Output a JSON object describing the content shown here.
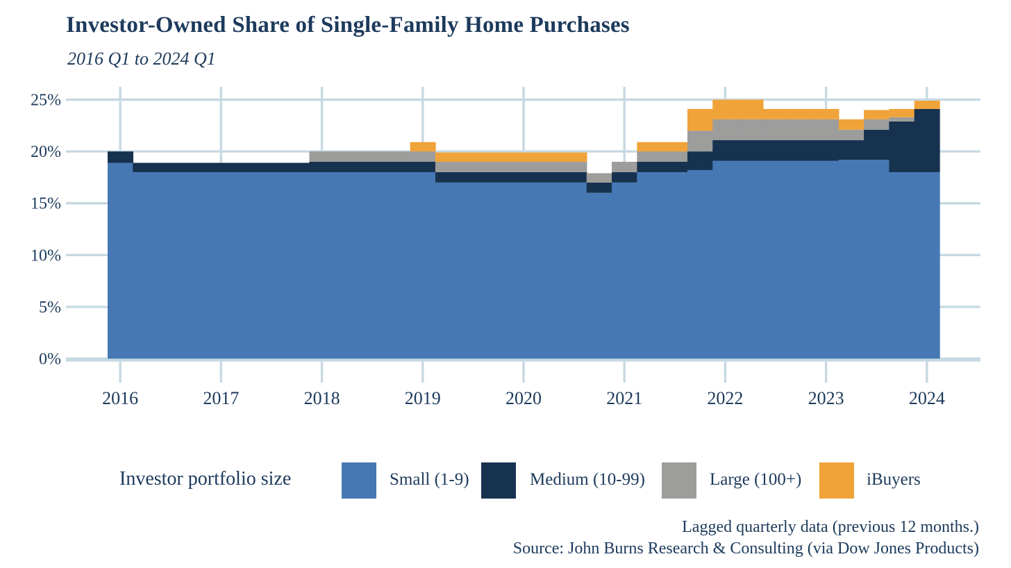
{
  "header": {
    "title": "Investor-Owned Share of Single-Family Home Purchases",
    "subtitle": "2016 Q1 to 2024 Q1"
  },
  "legend": {
    "title": "Investor portfolio size"
  },
  "footer": {
    "line1": "Lagged quarterly data (previous 12 months.)",
    "line2": "Source: John Burns Research & Consulting (via Dow Jones Products)"
  },
  "colors": {
    "text_navy": "#1d3a5c",
    "gridline": "#c7d9e2",
    "background": "#ffffff",
    "small_blue": "#4678b4",
    "medium_navy": "#16324f",
    "large_gray": "#9d9d9c",
    "ibuyers_orange": "#f0a339"
  },
  "chart_data": {
    "type": "area",
    "stacked": true,
    "step": true,
    "title": "Investor-Owned Share of Single-Family Home Purchases",
    "subtitle": "2016 Q1 to 2024 Q1",
    "legend_title": "Investor portfolio size",
    "legend_position": "bottom",
    "grid": true,
    "ylim": [
      0,
      25
    ],
    "yticks": [
      "0%",
      "5%",
      "10%",
      "15%",
      "20%",
      "25%"
    ],
    "xticks": [
      "2016",
      "2017",
      "2018",
      "2019",
      "2020",
      "2021",
      "2022",
      "2023",
      "2024"
    ],
    "x": [
      "2016 Q1",
      "2016 Q2",
      "2016 Q3",
      "2016 Q4",
      "2017 Q1",
      "2017 Q2",
      "2017 Q3",
      "2017 Q4",
      "2018 Q1",
      "2018 Q2",
      "2018 Q3",
      "2018 Q4",
      "2019 Q1",
      "2019 Q2",
      "2019 Q3",
      "2019 Q4",
      "2020 Q1",
      "2020 Q2",
      "2020 Q3",
      "2020 Q4",
      "2021 Q1",
      "2021 Q2",
      "2021 Q3",
      "2021 Q4",
      "2022 Q1",
      "2022 Q2",
      "2022 Q3",
      "2022 Q4",
      "2023 Q1",
      "2023 Q2",
      "2023 Q3",
      "2023 Q4",
      "2024 Q1"
    ],
    "series": [
      {
        "name": "Small (1-9)",
        "color": "#4678b4",
        "values": [
          18.9,
          18.0,
          18.0,
          18.0,
          18.0,
          18.0,
          18.0,
          18.0,
          18.0,
          18.0,
          18.0,
          18.0,
          18.0,
          17.0,
          17.0,
          17.0,
          17.0,
          17.0,
          17.0,
          16.0,
          17.0,
          18.0,
          18.0,
          18.2,
          19.1,
          19.1,
          19.1,
          19.1,
          19.1,
          19.2,
          19.2,
          18.0,
          18.0
        ]
      },
      {
        "name": "Medium (10-99)",
        "color": "#16324f",
        "values": [
          1.1,
          0.9,
          0.9,
          0.9,
          0.9,
          0.9,
          0.9,
          0.9,
          1.0,
          1.0,
          1.0,
          1.0,
          1.0,
          1.0,
          1.0,
          1.0,
          1.0,
          1.0,
          1.0,
          1.0,
          1.0,
          1.0,
          1.0,
          1.8,
          2.0,
          2.0,
          2.0,
          2.0,
          2.0,
          1.9,
          2.9,
          4.9,
          6.1
        ]
      },
      {
        "name": "Large (100+)",
        "color": "#9d9d9c",
        "values": [
          0,
          0,
          0,
          0,
          0,
          0,
          0,
          0,
          1.0,
          1.0,
          1.0,
          1.0,
          1.0,
          1.0,
          1.0,
          1.0,
          1.0,
          1.0,
          1.0,
          0.9,
          1.0,
          1.0,
          1.0,
          2.0,
          2.0,
          2.0,
          2.0,
          2.0,
          2.0,
          1.0,
          1.0,
          0.4,
          0
        ]
      },
      {
        "name": "iBuyers",
        "color": "#f0a339",
        "values": [
          0,
          0,
          0,
          0,
          0,
          0,
          0,
          0,
          0,
          0,
          0,
          0,
          0.9,
          0.9,
          0.9,
          0.9,
          0.9,
          0.9,
          0.9,
          0,
          0,
          0.9,
          0.9,
          2.1,
          1.9,
          1.9,
          1.0,
          1.0,
          1.0,
          1.0,
          0.9,
          0.8,
          0.8
        ]
      }
    ]
  }
}
